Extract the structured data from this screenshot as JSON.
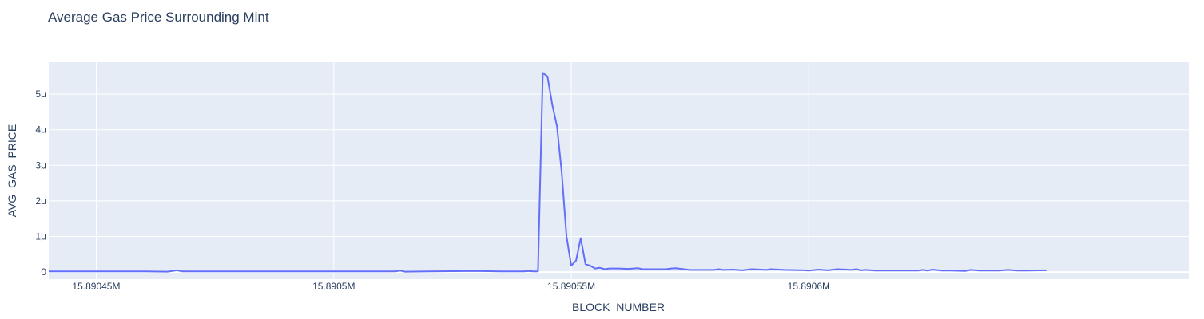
{
  "chart_data": {
    "type": "line",
    "title": "Average Gas Price Surrounding Mint",
    "xlabel": "BLOCK_NUMBER",
    "ylabel": "AVG_GAS_PRICE",
    "xlim": [
      15890440,
      15890680
    ],
    "ylim": [
      -2e-07,
      5.9e-06
    ],
    "x_ticks": [
      {
        "value": 15890450,
        "label": "15.89045M"
      },
      {
        "value": 15890500,
        "label": "15.8905M"
      },
      {
        "value": 15890550,
        "label": "15.89055M"
      },
      {
        "value": 15890600,
        "label": "15.8906M"
      }
    ],
    "y_ticks": [
      {
        "value": 0,
        "label": "0"
      },
      {
        "value": 1e-06,
        "label": "1μ"
      },
      {
        "value": 2e-06,
        "label": "2μ"
      },
      {
        "value": 3e-06,
        "label": "3μ"
      },
      {
        "value": 4e-06,
        "label": "4μ"
      },
      {
        "value": 5e-06,
        "label": "5μ"
      }
    ],
    "grid": true,
    "series": [
      {
        "color": "#636efa",
        "x": [
          15890440,
          15890450,
          15890460,
          15890465,
          15890467,
          15890468,
          15890480,
          15890500,
          15890513,
          15890514,
          15890515,
          15890520,
          15890530,
          15890535,
          15890537,
          15890539,
          15890540,
          15890541,
          15890542,
          15890543,
          15890544,
          15890545,
          15890546,
          15890547,
          15890548,
          15890549,
          15890550,
          15890551,
          15890552,
          15890553,
          15890554,
          15890555,
          15890556,
          15890557,
          15890558,
          15890559,
          15890560,
          15890562,
          15890564,
          15890565,
          15890567,
          15890570,
          15890571,
          15890572,
          15890575,
          15890580,
          15890581,
          15890582,
          15890584,
          15890586,
          15890588,
          15890590,
          15890591,
          15890592,
          15890595,
          15890599,
          15890600,
          15890602,
          15890604,
          15890606,
          15890608,
          15890609,
          15890610,
          15890611,
          15890612,
          15890614,
          15890620,
          15890623,
          15890624,
          15890625,
          15890626,
          15890628,
          15890630,
          15890633,
          15890634,
          15890636,
          15890640,
          15890642,
          15890644,
          15890646,
          15890650
        ],
        "y": [
          2e-08,
          2e-08,
          2e-08,
          1e-08,
          5e-08,
          2e-08,
          2e-08,
          2e-08,
          2e-08,
          4e-08,
          1e-08,
          2e-08,
          3e-08,
          2e-08,
          2e-08,
          2e-08,
          2e-08,
          3e-08,
          2e-08,
          2e-08,
          5.6e-06,
          5.5e-06,
          4.7e-06,
          4.1e-06,
          2.8e-06,
          1e-06,
          1.8e-07,
          3.2e-07,
          9.5e-07,
          2.2e-07,
          1.8e-07,
          1e-07,
          1.2e-07,
          8e-08,
          1e-07,
          1e-07,
          1e-07,
          9e-08,
          1.1e-07,
          8e-08,
          8e-08,
          8e-08,
          1e-07,
          1.1e-07,
          6e-08,
          6e-08,
          8e-08,
          6e-08,
          7e-08,
          5e-08,
          8e-08,
          7e-08,
          6e-08,
          8e-08,
          6e-08,
          5e-08,
          4e-08,
          7e-08,
          5e-08,
          8e-08,
          7e-08,
          6e-08,
          8e-08,
          5e-08,
          6e-08,
          4e-08,
          4e-08,
          4e-08,
          6e-08,
          4e-08,
          7e-08,
          4e-08,
          4e-08,
          3e-08,
          6e-08,
          4e-08,
          4e-08,
          6e-08,
          4e-08,
          4e-08,
          5e-08
        ]
      }
    ]
  }
}
